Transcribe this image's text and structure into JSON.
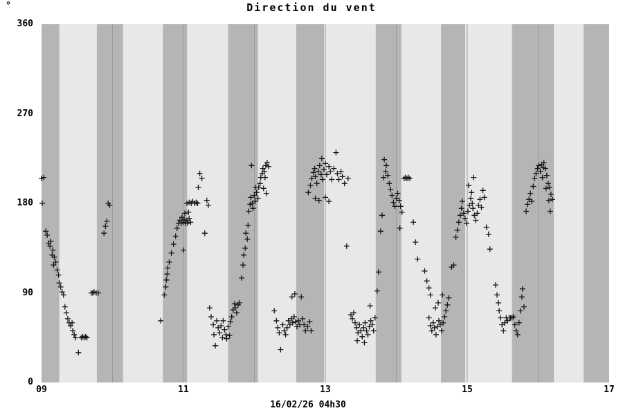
{
  "chart_data": {
    "type": "scatter",
    "title": "Direction du vent",
    "y_unit": "°",
    "xlabel": "16/02/26 04h30",
    "marker": "+",
    "xlim": [
      9,
      17
    ],
    "ylim": [
      0,
      360
    ],
    "xticks": [
      {
        "value": 9,
        "label": "09"
      },
      {
        "value": 11,
        "label": "11"
      },
      {
        "value": 13,
        "label": "13"
      },
      {
        "value": 15,
        "label": "15"
      },
      {
        "value": 17,
        "label": "17"
      }
    ],
    "yticks": [
      {
        "value": 0,
        "label": "0"
      },
      {
        "value": 90,
        "label": "90"
      },
      {
        "value": 180,
        "label": "180"
      },
      {
        "value": 270,
        "label": "270"
      },
      {
        "value": 360,
        "label": "360"
      }
    ],
    "hour_gridlines": [
      10,
      11,
      12,
      13,
      14,
      15,
      16
    ],
    "bands": [
      [
        9.0,
        9.25
      ],
      [
        9.78,
        10.15
      ],
      [
        10.71,
        11.05
      ],
      [
        11.63,
        12.05
      ],
      [
        12.59,
        12.98
      ],
      [
        13.71,
        14.07
      ],
      [
        14.63,
        14.97
      ],
      [
        15.63,
        16.22
      ],
      [
        16.64,
        17.0
      ]
    ],
    "colors": {
      "background": "#ffffff",
      "band_light": "#e8e8e8",
      "band_dark": "#b5b5b5",
      "gridline": "#9a9a9a",
      "marker": "#141414"
    },
    "points": [
      [
        9.0,
        205
      ],
      [
        9.03,
        206
      ],
      [
        9.01,
        180
      ],
      [
        9.06,
        152
      ],
      [
        9.08,
        148
      ],
      [
        9.1,
        140
      ],
      [
        9.12,
        137
      ],
      [
        9.13,
        142
      ],
      [
        9.15,
        128
      ],
      [
        9.16,
        133
      ],
      [
        9.18,
        126
      ],
      [
        9.17,
        118
      ],
      [
        9.2,
        121
      ],
      [
        9.22,
        113
      ],
      [
        9.24,
        108
      ],
      [
        9.25,
        100
      ],
      [
        9.27,
        96
      ],
      [
        9.29,
        91
      ],
      [
        9.31,
        88
      ],
      [
        9.33,
        76
      ],
      [
        9.35,
        70
      ],
      [
        9.37,
        64
      ],
      [
        9.39,
        60
      ],
      [
        9.41,
        57
      ],
      [
        9.43,
        60
      ],
      [
        9.44,
        52
      ],
      [
        9.46,
        48
      ],
      [
        9.48,
        45
      ],
      [
        9.52,
        30
      ],
      [
        9.56,
        45
      ],
      [
        9.58,
        46
      ],
      [
        9.6,
        45
      ],
      [
        9.62,
        46
      ],
      [
        9.64,
        45
      ],
      [
        9.7,
        90
      ],
      [
        9.72,
        90
      ],
      [
        9.74,
        91
      ],
      [
        9.77,
        90
      ],
      [
        9.8,
        90
      ],
      [
        9.88,
        150
      ],
      [
        9.9,
        157
      ],
      [
        9.92,
        162
      ],
      [
        9.94,
        180
      ],
      [
        9.96,
        178
      ],
      [
        10.68,
        62
      ],
      [
        10.73,
        88
      ],
      [
        10.75,
        96
      ],
      [
        10.76,
        103
      ],
      [
        10.77,
        109
      ],
      [
        10.78,
        115
      ],
      [
        10.8,
        121
      ],
      [
        10.83,
        130
      ],
      [
        10.86,
        139
      ],
      [
        10.89,
        147
      ],
      [
        10.91,
        155
      ],
      [
        10.93,
        160
      ],
      [
        10.95,
        163
      ],
      [
        10.97,
        160
      ],
      [
        10.98,
        166
      ],
      [
        11.0,
        161
      ],
      [
        11.01,
        164
      ],
      [
        11.03,
        160
      ],
      [
        11.05,
        163
      ],
      [
        11.06,
        160
      ],
      [
        11.08,
        165
      ],
      [
        11.1,
        161
      ],
      [
        11.02,
        170
      ],
      [
        11.07,
        171
      ],
      [
        11.0,
        133
      ],
      [
        11.05,
        180
      ],
      [
        11.08,
        181
      ],
      [
        11.11,
        180
      ],
      [
        11.13,
        182
      ],
      [
        11.16,
        180
      ],
      [
        11.18,
        181
      ],
      [
        11.2,
        180
      ],
      [
        11.21,
        196
      ],
      [
        11.23,
        210
      ],
      [
        11.26,
        205
      ],
      [
        11.3,
        150
      ],
      [
        11.33,
        183
      ],
      [
        11.35,
        178
      ],
      [
        11.37,
        75
      ],
      [
        11.39,
        66
      ],
      [
        11.42,
        58
      ],
      [
        11.43,
        48
      ],
      [
        11.45,
        37
      ],
      [
        11.47,
        62
      ],
      [
        11.49,
        55
      ],
      [
        11.51,
        50
      ],
      [
        11.53,
        57
      ],
      [
        11.55,
        45
      ],
      [
        11.56,
        62
      ],
      [
        11.58,
        53
      ],
      [
        11.6,
        48
      ],
      [
        11.61,
        44
      ],
      [
        11.63,
        56
      ],
      [
        11.65,
        47
      ],
      [
        11.66,
        61
      ],
      [
        11.68,
        66
      ],
      [
        11.7,
        73
      ],
      [
        11.72,
        79
      ],
      [
        11.73,
        75
      ],
      [
        11.75,
        70
      ],
      [
        11.77,
        78
      ],
      [
        11.79,
        80
      ],
      [
        11.82,
        105
      ],
      [
        11.84,
        118
      ],
      [
        11.85,
        128
      ],
      [
        11.87,
        135
      ],
      [
        11.88,
        150
      ],
      [
        11.9,
        144
      ],
      [
        11.91,
        158
      ],
      [
        11.92,
        172
      ],
      [
        11.94,
        179
      ],
      [
        11.95,
        186
      ],
      [
        11.97,
        180
      ],
      [
        11.98,
        175
      ],
      [
        12.0,
        188
      ],
      [
        12.01,
        182
      ],
      [
        12.03,
        191
      ],
      [
        12.05,
        185
      ],
      [
        12.02,
        196
      ],
      [
        12.06,
        196
      ],
      [
        11.96,
        218
      ],
      [
        12.08,
        200
      ],
      [
        12.09,
        206
      ],
      [
        12.11,
        210
      ],
      [
        12.12,
        215
      ],
      [
        12.14,
        212
      ],
      [
        12.15,
        206
      ],
      [
        12.16,
        218
      ],
      [
        12.18,
        221
      ],
      [
        12.2,
        217
      ],
      [
        12.13,
        195
      ],
      [
        12.17,
        190
      ],
      [
        12.28,
        72
      ],
      [
        12.31,
        62
      ],
      [
        12.33,
        55
      ],
      [
        12.35,
        50
      ],
      [
        12.37,
        33
      ],
      [
        12.4,
        58
      ],
      [
        12.42,
        52
      ],
      [
        12.44,
        48
      ],
      [
        12.46,
        55
      ],
      [
        12.48,
        62
      ],
      [
        12.5,
        58
      ],
      [
        12.52,
        64
      ],
      [
        12.54,
        60
      ],
      [
        12.56,
        66
      ],
      [
        12.58,
        61
      ],
      [
        12.6,
        56
      ],
      [
        12.62,
        62
      ],
      [
        12.64,
        58
      ],
      [
        12.53,
        86
      ],
      [
        12.57,
        89
      ],
      [
        12.66,
        86
      ],
      [
        12.68,
        64
      ],
      [
        12.7,
        58
      ],
      [
        12.72,
        52
      ],
      [
        12.75,
        56
      ],
      [
        12.78,
        61
      ],
      [
        12.8,
        52
      ],
      [
        12.76,
        191
      ],
      [
        12.79,
        198
      ],
      [
        12.81,
        205
      ],
      [
        12.83,
        211
      ],
      [
        12.85,
        215
      ],
      [
        12.86,
        207
      ],
      [
        12.88,
        200
      ],
      [
        12.9,
        212
      ],
      [
        12.92,
        218
      ],
      [
        12.94,
        209
      ],
      [
        12.96,
        204
      ],
      [
        12.98,
        214
      ],
      [
        13.0,
        220
      ],
      [
        13.02,
        209
      ],
      [
        12.95,
        225
      ],
      [
        12.86,
        185
      ],
      [
        12.91,
        183
      ],
      [
        13.0,
        186
      ],
      [
        13.05,
        182
      ],
      [
        13.05,
        217
      ],
      [
        13.07,
        212
      ],
      [
        13.09,
        204
      ],
      [
        13.12,
        215
      ],
      [
        13.15,
        231
      ],
      [
        13.17,
        210
      ],
      [
        13.19,
        204
      ],
      [
        13.22,
        212
      ],
      [
        13.24,
        207
      ],
      [
        13.27,
        200
      ],
      [
        13.3,
        137
      ],
      [
        13.32,
        205
      ],
      [
        13.36,
        68
      ],
      [
        13.38,
        64
      ],
      [
        13.4,
        70
      ],
      [
        13.42,
        60
      ],
      [
        13.44,
        55
      ],
      [
        13.45,
        42
      ],
      [
        13.46,
        50
      ],
      [
        13.48,
        58
      ],
      [
        13.5,
        52
      ],
      [
        13.52,
        46
      ],
      [
        13.54,
        55
      ],
      [
        13.55,
        40
      ],
      [
        13.56,
        60
      ],
      [
        13.58,
        52
      ],
      [
        13.6,
        48
      ],
      [
        13.62,
        56
      ],
      [
        13.63,
        77
      ],
      [
        13.64,
        62
      ],
      [
        13.66,
        58
      ],
      [
        13.68,
        52
      ],
      [
        13.7,
        65
      ],
      [
        13.73,
        92
      ],
      [
        13.75,
        111
      ],
      [
        13.78,
        152
      ],
      [
        13.8,
        168
      ],
      [
        13.82,
        206
      ],
      [
        13.83,
        224
      ],
      [
        13.85,
        212
      ],
      [
        13.86,
        218
      ],
      [
        13.88,
        208
      ],
      [
        13.9,
        200
      ],
      [
        13.92,
        194
      ],
      [
        13.94,
        188
      ],
      [
        13.96,
        181
      ],
      [
        13.98,
        177
      ],
      [
        14.0,
        185
      ],
      [
        14.02,
        190
      ],
      [
        14.04,
        183
      ],
      [
        14.05,
        155
      ],
      [
        14.06,
        177
      ],
      [
        14.08,
        171
      ],
      [
        14.11,
        205
      ],
      [
        14.13,
        206
      ],
      [
        14.15,
        205
      ],
      [
        14.17,
        206
      ],
      [
        14.19,
        205
      ],
      [
        14.24,
        161
      ],
      [
        14.27,
        141
      ],
      [
        14.3,
        124
      ],
      [
        14.4,
        112
      ],
      [
        14.43,
        102
      ],
      [
        14.46,
        95
      ],
      [
        14.48,
        88
      ],
      [
        14.46,
        65
      ],
      [
        14.48,
        57
      ],
      [
        14.5,
        52
      ],
      [
        14.52,
        60
      ],
      [
        14.54,
        55
      ],
      [
        14.56,
        48
      ],
      [
        14.58,
        56
      ],
      [
        14.6,
        62
      ],
      [
        14.62,
        58
      ],
      [
        14.64,
        52
      ],
      [
        14.66,
        60
      ],
      [
        14.68,
        66
      ],
      [
        14.7,
        72
      ],
      [
        14.72,
        78
      ],
      [
        14.74,
        85
      ],
      [
        14.59,
        80
      ],
      [
        14.55,
        75
      ],
      [
        14.65,
        88
      ],
      [
        14.78,
        116
      ],
      [
        14.81,
        118
      ],
      [
        14.84,
        146
      ],
      [
        14.86,
        153
      ],
      [
        14.88,
        161
      ],
      [
        14.9,
        168
      ],
      [
        14.92,
        175
      ],
      [
        14.93,
        182
      ],
      [
        14.95,
        170
      ],
      [
        14.97,
        165
      ],
      [
        14.99,
        160
      ],
      [
        15.01,
        172
      ],
      [
        15.03,
        178
      ],
      [
        15.05,
        185
      ],
      [
        15.07,
        180
      ],
      [
        15.08,
        175
      ],
      [
        15.1,
        168
      ],
      [
        15.12,
        163
      ],
      [
        15.14,
        170
      ],
      [
        15.16,
        178
      ],
      [
        15.18,
        184
      ],
      [
        15.2,
        176
      ],
      [
        15.06,
        191
      ],
      [
        15.09,
        206
      ],
      [
        15.02,
        198
      ],
      [
        15.22,
        193
      ],
      [
        15.24,
        186
      ],
      [
        15.27,
        156
      ],
      [
        15.3,
        149
      ],
      [
        15.32,
        134
      ],
      [
        15.4,
        98
      ],
      [
        15.42,
        88
      ],
      [
        15.44,
        80
      ],
      [
        15.45,
        72
      ],
      [
        15.47,
        65
      ],
      [
        15.49,
        58
      ],
      [
        15.51,
        52
      ],
      [
        15.53,
        60
      ],
      [
        15.55,
        65
      ],
      [
        15.57,
        62
      ],
      [
        15.59,
        65
      ],
      [
        15.61,
        65
      ],
      [
        15.63,
        65
      ],
      [
        15.65,
        66
      ],
      [
        15.67,
        58
      ],
      [
        15.69,
        52
      ],
      [
        15.71,
        48
      ],
      [
        15.73,
        60
      ],
      [
        15.75,
        72
      ],
      [
        15.77,
        86
      ],
      [
        15.78,
        94
      ],
      [
        15.8,
        76
      ],
      [
        15.83,
        172
      ],
      [
        15.85,
        179
      ],
      [
        15.87,
        184
      ],
      [
        15.89,
        190
      ],
      [
        15.91,
        182
      ],
      [
        15.93,
        197
      ],
      [
        15.95,
        205
      ],
      [
        15.97,
        210
      ],
      [
        15.99,
        215
      ],
      [
        16.01,
        218
      ],
      [
        16.03,
        212
      ],
      [
        16.05,
        219
      ],
      [
        16.07,
        216
      ],
      [
        16.08,
        221
      ],
      [
        16.1,
        215
      ],
      [
        16.06,
        206
      ],
      [
        16.12,
        208
      ],
      [
        16.14,
        200
      ],
      [
        16.16,
        196
      ],
      [
        16.18,
        189
      ],
      [
        16.2,
        184
      ],
      [
        16.11,
        195
      ],
      [
        16.15,
        183
      ],
      [
        16.17,
        172
      ]
    ]
  }
}
